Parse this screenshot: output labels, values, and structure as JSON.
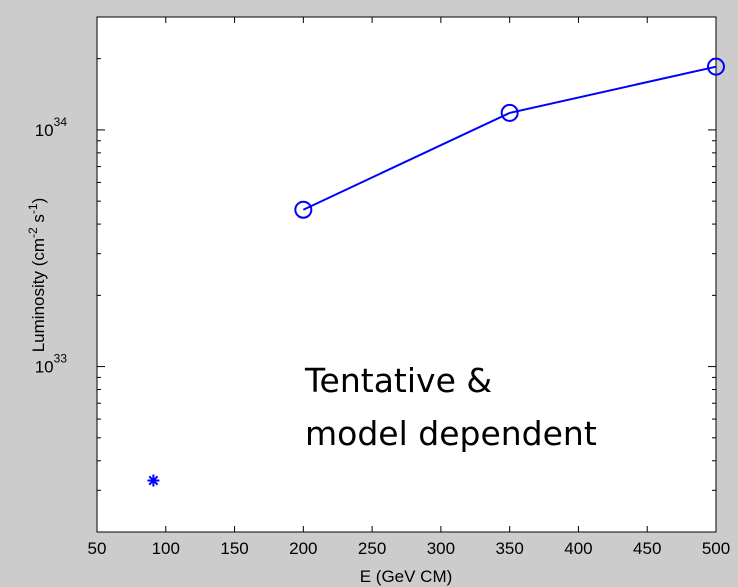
{
  "chart_data": {
    "type": "line",
    "xlabel": "E (GeV CM)",
    "ylabel": {
      "base": "Luminosity (cm",
      "exp1": "-2",
      "mid": " s",
      "exp2": "-1",
      "end": ")"
    },
    "xlim": [
      50,
      500
    ],
    "ylim": [
      2e+32,
      3e+34
    ],
    "yscale": "log",
    "grid": false,
    "x_ticks": [
      50,
      100,
      150,
      200,
      250,
      300,
      350,
      400,
      450,
      500
    ],
    "x_tick_labels": [
      "50",
      "100",
      "150",
      "200",
      "250",
      "300",
      "350",
      "400",
      "450",
      "500"
    ],
    "y_major_ticks": [
      {
        "value": 1e+33,
        "base": "10",
        "exp": "33"
      },
      {
        "value": 1e+34,
        "base": "10",
        "exp": "34"
      }
    ],
    "series": [
      {
        "marker": "circle",
        "line": true,
        "color": "#0000ff",
        "x": [
          200,
          350,
          500
        ],
        "y": [
          4.6e+33,
          1.18e+34,
          1.85e+34
        ]
      },
      {
        "marker": "asterisk",
        "line": false,
        "color": "#0000ff",
        "x": [
          91
        ],
        "y": [
          3.3e+32
        ]
      }
    ],
    "annotation": {
      "lines": [
        "Tentative &",
        "model dependent"
      ],
      "x": 305,
      "y": 1.05e+33
    }
  }
}
